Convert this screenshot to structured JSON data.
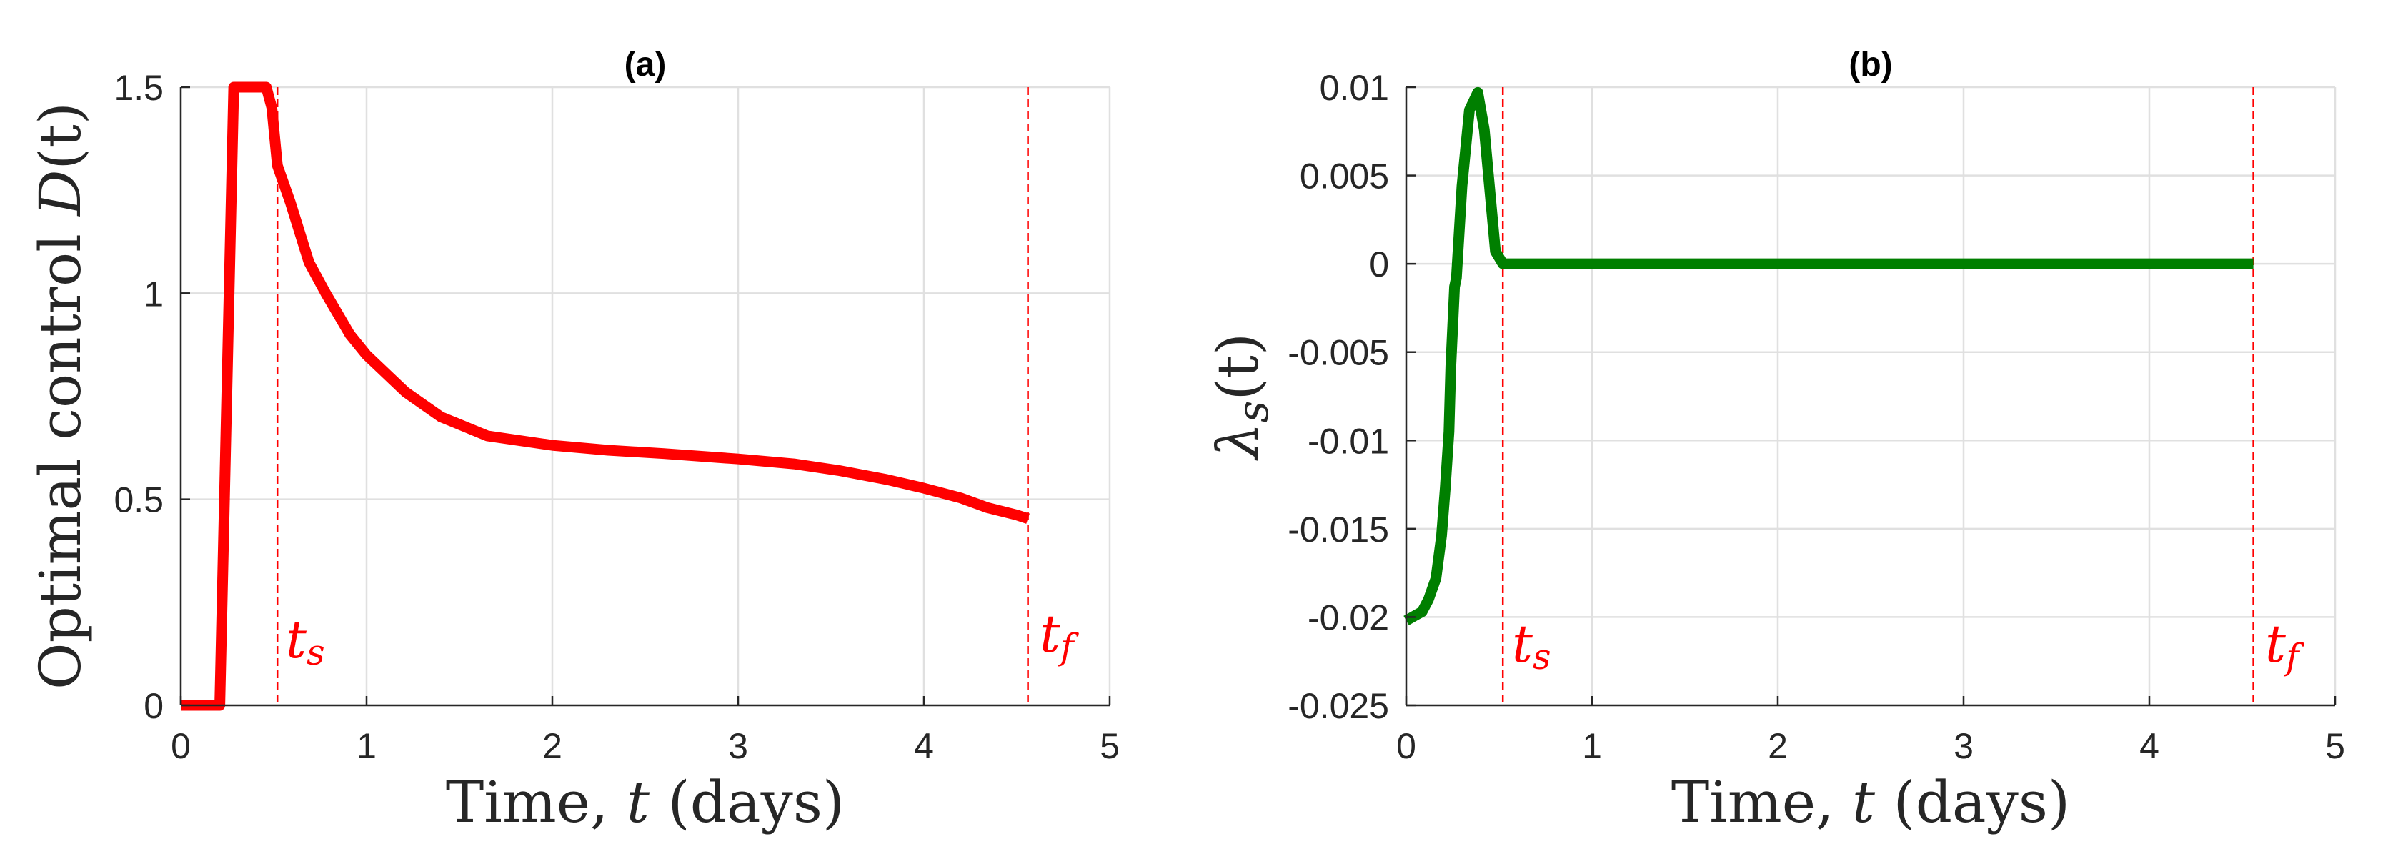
{
  "figure": {
    "panels": [
      {
        "id": "a",
        "title": "(a)",
        "xlabel_prefix": "Time, ",
        "xlabel_var": "t",
        "xlabel_suffix": " (days)",
        "ylabel_prefix": "Optimal control ",
        "ylabel_var": "D",
        "ylabel_suffix": "(t)",
        "xticks": [
          "0",
          "1",
          "2",
          "3",
          "4",
          "5"
        ],
        "yticks": [
          "0",
          "0.5",
          "1",
          "1.5"
        ],
        "ts_label": "t",
        "ts_sub": "s",
        "tf_label": "t",
        "tf_sub": "f"
      },
      {
        "id": "b",
        "title": "(b)",
        "xlabel_prefix": "Time, ",
        "xlabel_var": "t",
        "xlabel_suffix": " (days)",
        "ylabel_var": "λ",
        "ylabel_sub": "s",
        "ylabel_suffix": "(t)",
        "xticks": [
          "0",
          "1",
          "2",
          "3",
          "4",
          "5"
        ],
        "yticks": [
          "-0.025",
          "-0.02",
          "-0.015",
          "-0.01",
          "-0.005",
          "0",
          "0.005",
          "0.01"
        ],
        "ts_label": "t",
        "ts_sub": "s",
        "tf_label": "t",
        "tf_sub": "f"
      }
    ]
  },
  "chart_data": [
    {
      "type": "line",
      "title": "(a)",
      "xlabel": "Time, t (days)",
      "ylabel": "Optimal control D(t)",
      "xlim": [
        0,
        5
      ],
      "ylim": [
        0,
        1.5
      ],
      "xticks": [
        0,
        1,
        2,
        3,
        4,
        5
      ],
      "yticks": [
        0,
        0.5,
        1,
        1.5
      ],
      "grid": true,
      "legend": null,
      "series": [
        {
          "name": "D(t)",
          "color": "#ff0000",
          "x": [
            0,
            0.21,
            0.285,
            0.46,
            0.49,
            0.52,
            0.59,
            0.69,
            0.78,
            0.91,
            1.0,
            1.21,
            1.4,
            1.65,
            2.0,
            2.3,
            2.6,
            3.0,
            3.3,
            3.54,
            3.8,
            4.0,
            4.2,
            4.34,
            4.5,
            4.56
          ],
          "y": [
            0,
            0,
            1.5,
            1.5,
            1.45,
            1.31,
            1.22,
            1.075,
            1.0,
            0.9,
            0.85,
            0.76,
            0.7,
            0.654,
            0.631,
            0.619,
            0.611,
            0.598,
            0.586,
            0.57,
            0.548,
            0.527,
            0.503,
            0.48,
            0.462,
            0.453
          ]
        }
      ],
      "annotations": [
        {
          "type": "vline",
          "x": 0.52,
          "style": "dashed",
          "color": "#ff0000",
          "label": "t_s"
        },
        {
          "type": "vline",
          "x": 4.56,
          "style": "dashed",
          "color": "#ff0000",
          "label": "t_f"
        }
      ]
    },
    {
      "type": "line",
      "title": "(b)",
      "xlabel": "Time, t (days)",
      "ylabel": "λ_s(t)",
      "xlim": [
        0,
        5
      ],
      "ylim": [
        -0.025,
        0.01
      ],
      "xticks": [
        0,
        1,
        2,
        3,
        4,
        5
      ],
      "yticks": [
        -0.025,
        -0.02,
        -0.015,
        -0.01,
        -0.005,
        0,
        0.005,
        0.01
      ],
      "grid": true,
      "legend": null,
      "series": [
        {
          "name": "λ_s(t)",
          "color": "#007f00",
          "x": [
            0,
            0.05,
            0.085,
            0.12,
            0.16,
            0.19,
            0.21,
            0.23,
            0.24,
            0.26,
            0.27,
            0.3,
            0.34,
            0.385,
            0.42,
            0.48,
            0.52,
            1.0,
            2.0,
            3.0,
            4.0,
            4.56
          ],
          "y": [
            -0.0202,
            -0.0199,
            -0.0197,
            -0.019,
            -0.0178,
            -0.0154,
            -0.0127,
            -0.0095,
            -0.0058,
            -0.0013,
            -0.0008,
            0.0044,
            0.0087,
            0.0097,
            0.0076,
            0.0007,
            0,
            0,
            0,
            0,
            0,
            0
          ]
        }
      ],
      "annotations": [
        {
          "type": "vline",
          "x": 0.52,
          "style": "dashed",
          "color": "#ff0000",
          "label": "t_s"
        },
        {
          "type": "vline",
          "x": 4.56,
          "style": "dashed",
          "color": "#ff0000",
          "label": "t_f"
        }
      ]
    }
  ],
  "colors": {
    "control_line": "#ff0000",
    "costate_line": "#007f00",
    "marker_lines": "#ff0000",
    "grid": "#e0e0e0",
    "axis": "#262626"
  }
}
